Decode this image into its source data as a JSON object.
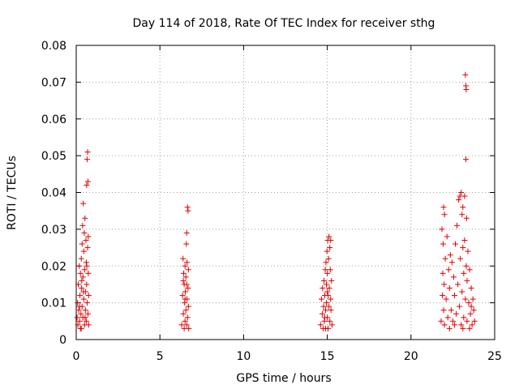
{
  "chart_data": {
    "type": "scatter",
    "title": "Day 114 of 2018, Rate Of TEC Index for receiver sthg",
    "xlabel": "GPS time / hours",
    "ylabel": "ROTI / TECUs",
    "xlim": [
      0,
      25
    ],
    "ylim": [
      0,
      0.08
    ],
    "xticks": [
      0,
      5,
      10,
      15,
      20,
      25
    ],
    "xtick_labels": [
      "0",
      "5",
      "10",
      "15",
      "20",
      "25"
    ],
    "yticks": [
      0,
      0.01,
      0.02,
      0.03,
      0.04,
      0.05,
      0.06,
      0.07,
      0.08
    ],
    "ytick_labels": [
      "0",
      "0.01",
      "0.02",
      "0.03",
      "0.04",
      "0.05",
      "0.06",
      "0.07",
      "0.08"
    ],
    "grid": true,
    "marker": "+",
    "color": "#e00000",
    "series": [
      {
        "name": "ROTI",
        "points": [
          [
            0.05,
            0.006
          ],
          [
            0.08,
            0.01
          ],
          [
            0.1,
            0.004
          ],
          [
            0.12,
            0.015
          ],
          [
            0.15,
            0.008
          ],
          [
            0.18,
            0.02
          ],
          [
            0.2,
            0.005
          ],
          [
            0.22,
            0.012
          ],
          [
            0.25,
            0.018
          ],
          [
            0.28,
            0.007
          ],
          [
            0.3,
            0.022
          ],
          [
            0.3,
            0.003
          ],
          [
            0.32,
            0.014
          ],
          [
            0.35,
            0.026
          ],
          [
            0.35,
            0.009
          ],
          [
            0.38,
            0.031
          ],
          [
            0.4,
            0.006
          ],
          [
            0.4,
            0.017
          ],
          [
            0.42,
            0.037
          ],
          [
            0.45,
            0.011
          ],
          [
            0.45,
            0.024
          ],
          [
            0.48,
            0.029
          ],
          [
            0.5,
            0.004
          ],
          [
            0.5,
            0.019
          ],
          [
            0.52,
            0.033
          ],
          [
            0.55,
            0.013
          ],
          [
            0.55,
            0.008
          ],
          [
            0.58,
            0.027
          ],
          [
            0.6,
            0.021
          ],
          [
            0.6,
            0.005
          ],
          [
            0.62,
            0.042
          ],
          [
            0.62,
            0.015
          ],
          [
            0.65,
            0.049
          ],
          [
            0.65,
            0.01
          ],
          [
            0.68,
            0.051
          ],
          [
            0.68,
            0.025
          ],
          [
            0.7,
            0.043
          ],
          [
            0.7,
            0.007
          ],
          [
            0.72,
            0.018
          ],
          [
            0.72,
            0.028
          ],
          [
            0.74,
            0.012
          ],
          [
            0.74,
            0.004
          ],
          [
            0.2,
            0.009
          ],
          [
            0.25,
            0.003
          ],
          [
            0.33,
            0.016
          ],
          [
            0.43,
            0.013
          ],
          [
            0.53,
            0.006
          ],
          [
            0.63,
            0.02
          ],
          [
            6.3,
            0.004
          ],
          [
            6.35,
            0.012
          ],
          [
            6.38,
            0.022
          ],
          [
            6.4,
            0.007
          ],
          [
            6.42,
            0.018
          ],
          [
            6.45,
            0.003
          ],
          [
            6.45,
            0.015
          ],
          [
            6.48,
            0.01
          ],
          [
            6.5,
            0.02
          ],
          [
            6.5,
            0.005
          ],
          [
            6.52,
            0.013
          ],
          [
            6.55,
            0.008
          ],
          [
            6.55,
            0.017
          ],
          [
            6.58,
            0.026
          ],
          [
            6.6,
            0.004
          ],
          [
            6.6,
            0.029
          ],
          [
            6.62,
            0.011
          ],
          [
            6.62,
            0.021
          ],
          [
            6.65,
            0.036
          ],
          [
            6.65,
            0.006
          ],
          [
            6.68,
            0.035
          ],
          [
            6.68,
            0.014
          ],
          [
            6.7,
            0.019
          ],
          [
            6.7,
            0.009
          ],
          [
            6.72,
            0.003
          ],
          [
            6.4,
            0.016
          ],
          [
            6.5,
            0.011
          ],
          [
            6.6,
            0.015
          ],
          [
            14.6,
            0.004
          ],
          [
            14.65,
            0.011
          ],
          [
            14.7,
            0.007
          ],
          [
            14.72,
            0.014
          ],
          [
            14.75,
            0.003
          ],
          [
            14.78,
            0.009
          ],
          [
            14.8,
            0.016
          ],
          [
            14.82,
            0.005
          ],
          [
            14.85,
            0.012
          ],
          [
            14.88,
            0.019
          ],
          [
            14.9,
            0.008
          ],
          [
            14.9,
            0.003
          ],
          [
            14.92,
            0.021
          ],
          [
            14.95,
            0.01
          ],
          [
            14.95,
            0.015
          ],
          [
            14.98,
            0.024
          ],
          [
            15.0,
            0.006
          ],
          [
            15.0,
            0.018
          ],
          [
            15.02,
            0.027
          ],
          [
            15.05,
            0.012
          ],
          [
            15.05,
            0.003
          ],
          [
            15.08,
            0.022
          ],
          [
            15.1,
            0.028
          ],
          [
            15.1,
            0.009
          ],
          [
            15.12,
            0.014
          ],
          [
            15.15,
            0.025
          ],
          [
            15.15,
            0.005
          ],
          [
            15.18,
            0.019
          ],
          [
            15.2,
            0.011
          ],
          [
            15.2,
            0.027
          ],
          [
            15.22,
            0.008
          ],
          [
            15.25,
            0.016
          ],
          [
            15.28,
            0.004
          ],
          [
            14.85,
            0.006
          ],
          [
            15.0,
            0.013
          ],
          [
            21.8,
            0.005
          ],
          [
            21.85,
            0.03
          ],
          [
            21.88,
            0.012
          ],
          [
            21.9,
            0.018
          ],
          [
            21.92,
            0.026
          ],
          [
            21.95,
            0.008
          ],
          [
            21.95,
            0.036
          ],
          [
            21.98,
            0.015
          ],
          [
            22.0,
            0.034
          ],
          [
            22.0,
            0.004
          ],
          [
            22.05,
            0.022
          ],
          [
            22.1,
            0.011
          ],
          [
            22.15,
            0.028
          ],
          [
            22.2,
            0.006
          ],
          [
            22.25,
            0.019
          ],
          [
            22.3,
            0.014
          ],
          [
            22.35,
            0.023
          ],
          [
            22.4,
            0.008
          ],
          [
            22.45,
            0.021
          ],
          [
            22.5,
            0.005
          ],
          [
            22.55,
            0.017
          ],
          [
            22.6,
            0.012
          ],
          [
            22.65,
            0.026
          ],
          [
            22.7,
            0.007
          ],
          [
            22.75,
            0.031
          ],
          [
            22.8,
            0.015
          ],
          [
            22.85,
            0.038
          ],
          [
            22.9,
            0.009
          ],
          [
            22.92,
            0.039
          ],
          [
            22.95,
            0.022
          ],
          [
            23.0,
            0.004
          ],
          [
            23.0,
            0.04
          ],
          [
            23.05,
            0.034
          ],
          [
            23.05,
            0.013
          ],
          [
            23.1,
            0.036
          ],
          [
            23.1,
            0.025
          ],
          [
            23.15,
            0.018
          ],
          [
            23.15,
            0.006
          ],
          [
            23.2,
            0.039
          ],
          [
            23.2,
            0.027
          ],
          [
            23.25,
            0.072
          ],
          [
            23.25,
            0.011
          ],
          [
            23.28,
            0.069
          ],
          [
            23.28,
            0.049
          ],
          [
            23.3,
            0.068
          ],
          [
            23.3,
            0.02
          ],
          [
            23.32,
            0.033
          ],
          [
            23.35,
            0.016
          ],
          [
            23.35,
            0.005
          ],
          [
            23.4,
            0.024
          ],
          [
            23.45,
            0.01
          ],
          [
            23.5,
            0.019
          ],
          [
            23.55,
            0.007
          ],
          [
            23.6,
            0.014
          ],
          [
            23.65,
            0.004
          ],
          [
            23.7,
            0.011
          ],
          [
            23.75,
            0.008
          ],
          [
            23.8,
            0.005
          ],
          [
            22.3,
            0.003
          ],
          [
            22.6,
            0.004
          ],
          [
            23.1,
            0.003
          ],
          [
            23.5,
            0.003
          ],
          [
            23.6,
            0.009
          ]
        ]
      }
    ]
  }
}
